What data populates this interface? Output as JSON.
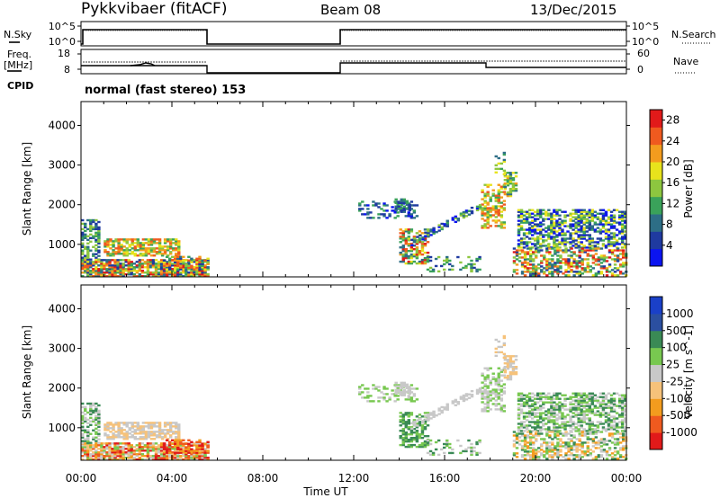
{
  "header": {
    "station": "Pykkvibaer (fitACF)",
    "beam": "Beam 08",
    "date": "13/Dec/2015"
  },
  "strip": {
    "nsky_label": "N.Sky",
    "nsearch_label": "N.Search",
    "freq_label": "Freq.",
    "freq_unit": "[MHz]",
    "nave_label": "Nave",
    "cpid_label": "CPID",
    "cpid_text": "normal (fast stereo) 153",
    "noise_ticks_left": [
      "10^5",
      "10^0"
    ],
    "noise_ticks_right": [
      "10^5",
      "10^0"
    ],
    "freq_ticks": [
      "18",
      "8"
    ],
    "nave_ticks": [
      "60",
      "0"
    ]
  },
  "colors": {
    "power": [
      "#0b14f0",
      "#1f3aa0",
      "#2d6e86",
      "#3aa25a",
      "#8dc63f",
      "#e8e31c",
      "#f39c1e",
      "#ef5a1f",
      "#e11a1a"
    ],
    "velocity": [
      "#e11a1a",
      "#ef5a1f",
      "#f39c1e",
      "#f6c27a",
      "#c8c8c8",
      "#78c850",
      "#3a8a55",
      "#2b4fa0",
      "#1a40c8"
    ]
  },
  "chart_data": [
    {
      "type": "heatmap",
      "title": "Power",
      "xlabel": "Time UT",
      "ylabel": "Slant Range [km]",
      "xlim": [
        "00:00",
        "24:00"
      ],
      "ylim": [
        180,
        4600
      ],
      "x_ticks": [
        "00:00",
        "04:00",
        "08:00",
        "12:00",
        "16:00",
        "20:00",
        "00:00"
      ],
      "y_ticks": [
        1000,
        2000,
        3000,
        4000
      ],
      "colorbar": {
        "label": "Power [dB]",
        "ticks": [
          "4",
          "8",
          "12",
          "16",
          "20",
          "24",
          "28"
        ],
        "range": [
          0,
          30
        ]
      }
    },
    {
      "type": "heatmap",
      "title": "Velocity",
      "xlabel": "Time UT",
      "ylabel": "Slant Range [km]",
      "xlim": [
        "00:00",
        "24:00"
      ],
      "ylim": [
        180,
        4600
      ],
      "x_ticks": [
        "00:00",
        "04:00",
        "08:00",
        "12:00",
        "16:00",
        "20:00",
        "00:00"
      ],
      "y_ticks": [
        1000,
        2000,
        3000,
        4000
      ],
      "colorbar": {
        "label": "Velocity [m s^-1]",
        "ticks": [
          "-1000",
          "-500",
          "-100",
          "-25",
          "25",
          "100",
          "500",
          "1000"
        ]
      }
    }
  ],
  "time_axis_label": "Time UT",
  "x_tick_labels": [
    "00:00",
    "04:00",
    "08:00",
    "12:00",
    "16:00",
    "20:00",
    "00:00"
  ]
}
